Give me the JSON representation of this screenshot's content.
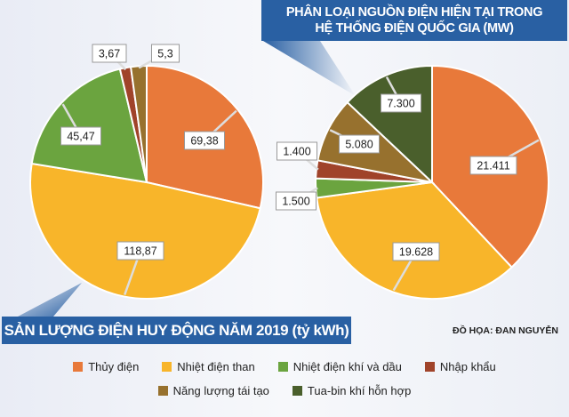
{
  "chart_data": [
    {
      "type": "pie",
      "title": "SẢN LƯỢNG ĐIỆN HUY ĐỘNG NĂM 2019 (tỷ kWh)",
      "categories": [
        "Thủy điện",
        "Nhiệt điện than",
        "Nhiệt điện khí và dầu",
        "Nhập khẩu",
        "Năng lượng tái tạo"
      ],
      "values": [
        69.38,
        118.87,
        45.47,
        3.67,
        5.3
      ],
      "labels": [
        "69,38",
        "118,87",
        "45,47",
        "3,67",
        "5,3"
      ],
      "colors": [
        "#e8793a",
        "#f8b52a",
        "#6ba43f",
        "#a0432a",
        "#97712e"
      ]
    },
    {
      "type": "pie",
      "title": "PHÂN LOẠI NGUỒN ĐIỆN HIỆN TẠI TRONG HỆ THỐNG ĐIỆN QUỐC GIA (MW)",
      "categories": [
        "Thủy điện",
        "Nhiệt điện than",
        "Nhiệt điện khí và dầu",
        "Nhập khẩu",
        "Năng lượng tái tạo",
        "Tua-bin khí hỗn hợp"
      ],
      "values": [
        21411,
        19628,
        1500,
        1400,
        5080,
        7300
      ],
      "labels": [
        "21.411",
        "19.628",
        "1.500",
        "1.400",
        "5.080",
        "7.300"
      ],
      "colors": [
        "#e8793a",
        "#f8b52a",
        "#6ba43f",
        "#a0432a",
        "#97712e",
        "#4a5f2c"
      ]
    }
  ],
  "banner_right": {
    "line1": "PHÂN LOẠI NGUỒN ĐIỆN HIỆN TẠI TRONG",
    "line2": "HỆ THỐNG ĐIỆN QUỐC GIA (MW)"
  },
  "banner_left": "SẢN LƯỢNG ĐIỆN HUY ĐỘNG NĂM 2019 (tỷ kWh)",
  "credit": "ĐỒ HỌA: ĐAN NGUYỄN",
  "legend": [
    {
      "label": "Thủy điện",
      "color": "#e8793a"
    },
    {
      "label": "Nhiệt điện than",
      "color": "#f8b52a"
    },
    {
      "label": "Nhiệt điện khí và dầu",
      "color": "#6ba43f"
    },
    {
      "label": "Nhập khẩu",
      "color": "#a0432a"
    },
    {
      "label": "Năng lượng tái tạo",
      "color": "#97712e"
    },
    {
      "label": "Tua-bin khí hỗn hợp",
      "color": "#4a5f2c"
    }
  ],
  "banner_color": "#2960a3"
}
